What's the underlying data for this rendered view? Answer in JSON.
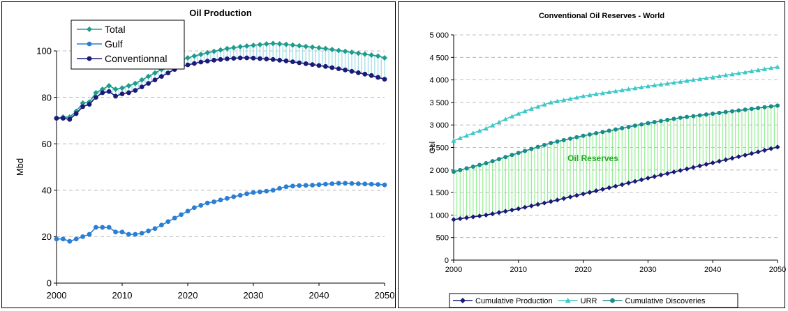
{
  "charts": [
    {
      "type": "line",
      "title": "Oil Production",
      "ylabel": "Mbd",
      "xlabel": "",
      "xlim": [
        2000,
        2050
      ],
      "ylim": [
        0,
        100
      ],
      "x_ticks": [
        "2000",
        "2010",
        "2020",
        "2030",
        "2040",
        "2050"
      ],
      "y_ticks": [
        "0",
        "20",
        "40",
        "60",
        "80",
        "100"
      ],
      "grid": "horizontal dashed",
      "legend_position": "top-left",
      "legend": [
        "Total",
        "Gulf",
        "Conventionnal"
      ],
      "series": [
        {
          "name": "Total",
          "color": "#1f9c8c",
          "marker": "diamond",
          "points": [
            [
              2000,
              71
            ],
            [
              2001,
              71.5
            ],
            [
              2002,
              71.5
            ],
            [
              2003,
              74
            ],
            [
              2004,
              77.5
            ],
            [
              2005,
              78
            ],
            [
              2006,
              82
            ],
            [
              2007,
              83.5
            ],
            [
              2008,
              85
            ],
            [
              2009,
              83.5
            ],
            [
              2010,
              84
            ],
            [
              2011,
              85
            ],
            [
              2012,
              86
            ],
            [
              2013,
              87.5
            ],
            [
              2014,
              89
            ],
            [
              2015,
              90.5
            ],
            [
              2016,
              92
            ],
            [
              2017,
              93.5
            ],
            [
              2018,
              95
            ],
            [
              2019,
              96
            ],
            [
              2020,
              97
            ],
            [
              2021,
              97.8
            ],
            [
              2022,
              98.5
            ],
            [
              2023,
              99.2
            ],
            [
              2024,
              99.8
            ],
            [
              2025,
              100.4
            ],
            [
              2026,
              101
            ],
            [
              2027,
              101.4
            ],
            [
              2028,
              101.8
            ],
            [
              2029,
              102.1
            ],
            [
              2030,
              102.4
            ],
            [
              2031,
              102.7
            ],
            [
              2032,
              103
            ],
            [
              2033,
              103.2
            ],
            [
              2034,
              103
            ],
            [
              2035,
              102.8
            ],
            [
              2036,
              102.5
            ],
            [
              2037,
              102.2
            ],
            [
              2038,
              101.9
            ],
            [
              2039,
              101.6
            ],
            [
              2040,
              101.3
            ],
            [
              2041,
              101
            ],
            [
              2042,
              100.6
            ],
            [
              2043,
              100.2
            ],
            [
              2044,
              99.8
            ],
            [
              2045,
              99.4
            ],
            [
              2046,
              99
            ],
            [
              2047,
              98.6
            ],
            [
              2048,
              98.2
            ],
            [
              2049,
              97.8
            ],
            [
              2050,
              97
            ]
          ]
        },
        {
          "name": "Gulf",
          "color": "#2a7fd4",
          "marker": "circle",
          "points": [
            [
              2000,
              19
            ],
            [
              2001,
              19
            ],
            [
              2002,
              18
            ],
            [
              2003,
              19
            ],
            [
              2004,
              20
            ],
            [
              2005,
              21
            ],
            [
              2006,
              24
            ],
            [
              2007,
              24
            ],
            [
              2008,
              24
            ],
            [
              2009,
              22
            ],
            [
              2010,
              22
            ],
            [
              2011,
              21
            ],
            [
              2012,
              21
            ],
            [
              2013,
              21.5
            ],
            [
              2014,
              22.5
            ],
            [
              2015,
              23.5
            ],
            [
              2016,
              25
            ],
            [
              2017,
              26.5
            ],
            [
              2018,
              28
            ],
            [
              2019,
              29.5
            ],
            [
              2020,
              31
            ],
            [
              2021,
              32.5
            ],
            [
              2022,
              33.5
            ],
            [
              2023,
              34.5
            ],
            [
              2024,
              35
            ],
            [
              2025,
              35.8
            ],
            [
              2026,
              36.5
            ],
            [
              2027,
              37.2
            ],
            [
              2028,
              37.8
            ],
            [
              2029,
              38.5
            ],
            [
              2030,
              39
            ],
            [
              2031,
              39.3
            ],
            [
              2032,
              39.6
            ],
            [
              2033,
              40
            ],
            [
              2034,
              40.8
            ],
            [
              2035,
              41.5
            ],
            [
              2036,
              41.8
            ],
            [
              2037,
              42
            ],
            [
              2038,
              42.1
            ],
            [
              2039,
              42.2
            ],
            [
              2040,
              42.4
            ],
            [
              2041,
              42.6
            ],
            [
              2042,
              42.8
            ],
            [
              2043,
              43
            ],
            [
              2044,
              43
            ],
            [
              2045,
              42.9
            ],
            [
              2046,
              42.8
            ],
            [
              2047,
              42.7
            ],
            [
              2048,
              42.6
            ],
            [
              2049,
              42.5
            ],
            [
              2050,
              42.3
            ]
          ]
        },
        {
          "name": "Conventionnal",
          "color": "#1a1a78",
          "marker": "circle",
          "points": [
            [
              2000,
              71
            ],
            [
              2001,
              71
            ],
            [
              2002,
              70.5
            ],
            [
              2003,
              73
            ],
            [
              2004,
              76
            ],
            [
              2005,
              77
            ],
            [
              2006,
              80
            ],
            [
              2007,
              82
            ],
            [
              2008,
              82.5
            ],
            [
              2009,
              80.5
            ],
            [
              2010,
              81.5
            ],
            [
              2011,
              82
            ],
            [
              2012,
              83
            ],
            [
              2013,
              84.5
            ],
            [
              2014,
              86
            ],
            [
              2015,
              87.5
            ],
            [
              2016,
              89
            ],
            [
              2017,
              90.5
            ],
            [
              2018,
              92
            ],
            [
              2019,
              93
            ],
            [
              2020,
              94
            ],
            [
              2021,
              94.6
            ],
            [
              2022,
              95.2
            ],
            [
              2023,
              95.6
            ],
            [
              2024,
              96
            ],
            [
              2025,
              96.3
            ],
            [
              2026,
              96.6
            ],
            [
              2027,
              96.8
            ],
            [
              2028,
              97
            ],
            [
              2029,
              97
            ],
            [
              2030,
              96.9
            ],
            [
              2031,
              96.7
            ],
            [
              2032,
              96.5
            ],
            [
              2033,
              96.3
            ],
            [
              2034,
              96
            ],
            [
              2035,
              95.7
            ],
            [
              2036,
              95.3
            ],
            [
              2037,
              94.9
            ],
            [
              2038,
              94.5
            ],
            [
              2039,
              94.1
            ],
            [
              2040,
              93.7
            ],
            [
              2041,
              93.3
            ],
            [
              2042,
              92.8
            ],
            [
              2043,
              92.3
            ],
            [
              2044,
              91.8
            ],
            [
              2045,
              91.2
            ],
            [
              2046,
              90.6
            ],
            [
              2047,
              90
            ],
            [
              2048,
              89.4
            ],
            [
              2049,
              88.6
            ],
            [
              2050,
              87.8
            ]
          ]
        }
      ],
      "fill_between": {
        "upper": "Total",
        "lower": "Conventionnal",
        "color": "#a8e0ec"
      }
    },
    {
      "type": "line",
      "title": "Conventional Oil Reserves - World",
      "ylabel": "Gbl",
      "xlabel": "",
      "xlim": [
        2000,
        2050
      ],
      "ylim": [
        0,
        5000
      ],
      "x_ticks": [
        "2000",
        "2010",
        "2020",
        "2030",
        "2040",
        "2050"
      ],
      "y_ticks": [
        "0",
        "500",
        "1 000",
        "1 500",
        "2 000",
        "2 500",
        "3 000",
        "3 500",
        "4 000",
        "4 500",
        "5 000"
      ],
      "grid": "horizontal dashed",
      "legend_position": "bottom",
      "legend": [
        "Cumulative Production",
        "URR",
        "Cumulative Discoveries"
      ],
      "annotation": {
        "text": "Oil Reserves",
        "x": 2021.5,
        "y": 2200,
        "color": "#22aa22"
      },
      "series": [
        {
          "name": "Cumulative Production",
          "color": "#1a1a78",
          "marker": "diamond",
          "points": [
            [
              2000,
              900
            ],
            [
              2005,
              1000
            ],
            [
              2010,
              1140
            ],
            [
              2015,
              1300
            ],
            [
              2020,
              1470
            ],
            [
              2025,
              1640
            ],
            [
              2030,
              1820
            ],
            [
              2035,
              1990
            ],
            [
              2040,
              2160
            ],
            [
              2045,
              2330
            ],
            [
              2050,
              2510
            ]
          ]
        },
        {
          "name": "URR",
          "color": "#40c8c8",
          "marker": "triangle",
          "points": [
            [
              2000,
              2650
            ],
            [
              2003,
              2820
            ],
            [
              2005,
              2920
            ],
            [
              2008,
              3130
            ],
            [
              2010,
              3250
            ],
            [
              2012,
              3360
            ],
            [
              2015,
              3500
            ],
            [
              2018,
              3580
            ],
            [
              2020,
              3640
            ],
            [
              2025,
              3750
            ],
            [
              2030,
              3860
            ],
            [
              2035,
              3960
            ],
            [
              2040,
              4060
            ],
            [
              2045,
              4170
            ],
            [
              2050,
              4290
            ]
          ]
        },
        {
          "name": "Cumulative Discoveries",
          "color": "#1a8c8c",
          "marker": "circle",
          "points": [
            [
              2000,
              1960
            ],
            [
              2005,
              2150
            ],
            [
              2010,
              2380
            ],
            [
              2015,
              2600
            ],
            [
              2020,
              2760
            ],
            [
              2025,
              2900
            ],
            [
              2030,
              3040
            ],
            [
              2035,
              3160
            ],
            [
              2040,
              3250
            ],
            [
              2045,
              3340
            ],
            [
              2050,
              3430
            ]
          ]
        }
      ],
      "fill_between": {
        "upper": "Cumulative Discoveries",
        "lower": "Cumulative Production",
        "color": "#90ee90"
      }
    }
  ]
}
